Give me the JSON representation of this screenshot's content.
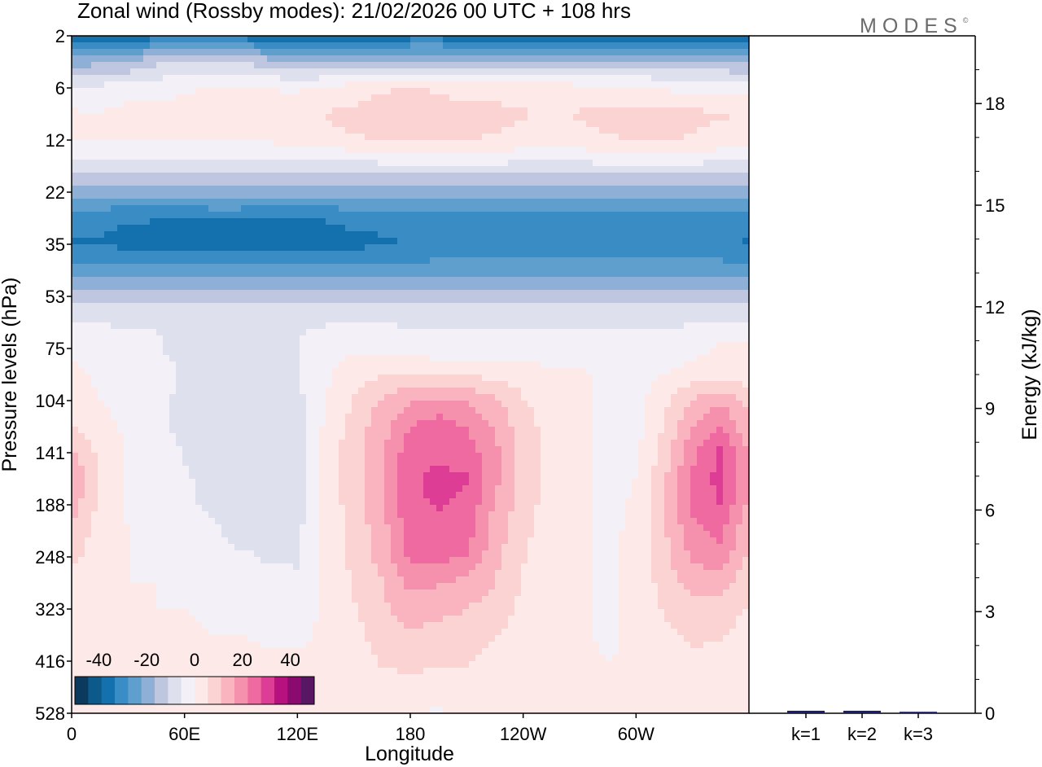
{
  "chart_data": [
    {
      "type": "heatmap",
      "title": "Zonal wind (Rossby modes):  21/02/2026  00 UTC  + 108 hrs",
      "xlabel": "Longitude",
      "ylabel": "Pressure levels (hPa)",
      "x_ticks": [
        "0",
        "60E",
        "120E",
        "180",
        "120W",
        "60W"
      ],
      "x_tick_lon": [
        0,
        60,
        120,
        180,
        240,
        300
      ],
      "xlim": [
        0,
        360
      ],
      "y_ticks": [
        "2",
        "6",
        "12",
        "22",
        "35",
        "53",
        "75",
        "104",
        "141",
        "188",
        "248",
        "323",
        "416",
        "528"
      ],
      "colorbar": {
        "tick_labels": [
          "-40",
          "-20",
          "0",
          "20",
          "40"
        ],
        "levels": [
          -40,
          -20,
          0,
          20,
          40
        ],
        "range": [
          -50,
          50
        ],
        "colors": [
          "#0b3a5e",
          "#0c5a8a",
          "#1471ad",
          "#3a8cc4",
          "#5e9fce",
          "#8eb0d6",
          "#bec6e0",
          "#dfe0ee",
          "#f3f0f7",
          "#fde9e7",
          "#fbd3d3",
          "#f9b4c0",
          "#f590ad",
          "#ef6aa0",
          "#dd3d94",
          "#b7107f",
          "#8a0a70",
          "#581763"
        ]
      },
      "rows": [
        {
          "level": "2",
          "values": [
            -38,
            -38,
            -38,
            -36,
            -36,
            -35,
            -36,
            -38,
            -38,
            -38,
            -38,
            -37,
            -36,
            -36,
            -37,
            -38,
            -38,
            -38,
            -38,
            -38,
            -38,
            -38,
            -38,
            -38,
            -38
          ]
        },
        {
          "level": "4",
          "values": [
            -20,
            -18,
            -16,
            -12,
            -10,
            -10,
            -12,
            -14,
            -15,
            -16,
            -16,
            -15,
            -14,
            -14,
            -14,
            -15,
            -16,
            -16,
            -16,
            -15,
            -14,
            -14,
            -15,
            -16,
            -17
          ]
        },
        {
          "level": "6",
          "values": [
            -6,
            -4,
            -3,
            -2,
            -1,
            1,
            1,
            0,
            -1,
            1,
            3,
            5,
            6,
            5,
            4,
            4,
            3,
            3,
            2,
            1,
            0,
            -1,
            -2,
            -2,
            -3
          ]
        },
        {
          "level": "9",
          "values": [
            1,
            0,
            2,
            2,
            2,
            3,
            2,
            2,
            4,
            6,
            7,
            8,
            8,
            7,
            7,
            7,
            6,
            5,
            6,
            7,
            8,
            8,
            7,
            6,
            5
          ]
        },
        {
          "level": "12",
          "values": [
            0,
            1,
            1,
            1,
            1,
            1,
            1,
            1,
            2,
            4,
            5,
            6,
            6,
            6,
            6,
            5,
            4,
            3,
            4,
            5,
            6,
            6,
            5,
            4,
            3
          ]
        },
        {
          "level": "17",
          "values": [
            -8,
            -8,
            -8,
            -8,
            -8,
            -8,
            -8,
            -8,
            -8,
            -8,
            -8,
            -7,
            -7,
            -7,
            -7,
            -7,
            -7,
            -7,
            -7,
            -7,
            -7,
            -7,
            -7,
            -7,
            -8
          ]
        },
        {
          "level": "22",
          "values": [
            -20,
            -20,
            -20,
            -20,
            -20,
            -19,
            -19,
            -20,
            -20,
            -20,
            -20,
            -19,
            -19,
            -19,
            -19,
            -19,
            -19,
            -19,
            -19,
            -19,
            -19,
            -19,
            -19,
            -19,
            -20
          ]
        },
        {
          "level": "28",
          "values": [
            -32,
            -32,
            -33,
            -33,
            -33,
            -33,
            -33,
            -33,
            -33,
            -33,
            -32,
            -32,
            -32,
            -31,
            -31,
            -31,
            -31,
            -31,
            -31,
            -31,
            -31,
            -31,
            -31,
            -31,
            -32
          ]
        },
        {
          "level": "35",
          "values": [
            -34,
            -34,
            -35,
            -36,
            -36,
            -36,
            -36,
            -36,
            -36,
            -36,
            -35,
            -34,
            -33,
            -32,
            -32,
            -32,
            -32,
            -32,
            -32,
            -31,
            -31,
            -31,
            -31,
            -32,
            -34
          ]
        },
        {
          "level": "44",
          "values": [
            -26,
            -25,
            -25,
            -25,
            -25,
            -25,
            -25,
            -25,
            -25,
            -25,
            -25,
            -25,
            -25,
            -25,
            -25,
            -25,
            -25,
            -25,
            -25,
            -25,
            -25,
            -25,
            -25,
            -25,
            -26
          ]
        },
        {
          "level": "53",
          "values": [
            -14,
            -13,
            -13,
            -13,
            -13,
            -13,
            -13,
            -13,
            -13,
            -13,
            -13,
            -13,
            -13,
            -12,
            -12,
            -12,
            -12,
            -12,
            -12,
            -12,
            -12,
            -12,
            -12,
            -12,
            -13
          ]
        },
        {
          "level": "64",
          "values": [
            -6,
            -6,
            -6,
            -6,
            -6,
            -6,
            -6,
            -6,
            -6,
            -6,
            -6,
            -6,
            -6,
            -6,
            -6,
            -6,
            -6,
            -6,
            -6,
            -6,
            -6,
            -6,
            -6,
            -6,
            -6
          ]
        },
        {
          "level": "75",
          "values": [
            -1,
            -2,
            -3,
            -5,
            -7,
            -8,
            -7,
            -7,
            -6,
            -2,
            -1,
            -2,
            -3,
            -4,
            -4,
            -4,
            -4,
            -4,
            -3,
            -3,
            -4,
            -4,
            -2,
            1,
            1
          ]
        },
        {
          "level": "90",
          "values": [
            1,
            -1,
            -2,
            -4,
            -6,
            -8,
            -8,
            -7,
            -6,
            -1,
            3,
            5,
            6,
            6,
            5,
            4,
            3,
            2,
            1,
            -2,
            -2,
            0,
            2,
            3,
            2
          ]
        },
        {
          "level": "104",
          "values": [
            3,
            0,
            -2,
            -4,
            -7,
            -9,
            -8,
            -8,
            -7,
            0,
            6,
            12,
            16,
            18,
            16,
            12,
            6,
            3,
            2,
            -3,
            -2,
            4,
            12,
            16,
            10
          ]
        },
        {
          "level": "121",
          "values": [
            6,
            2,
            -1,
            -4,
            -7,
            -9,
            -9,
            -10,
            -8,
            1,
            8,
            14,
            22,
            25,
            22,
            16,
            8,
            3,
            3,
            -4,
            -2,
            6,
            17,
            22,
            12
          ]
        },
        {
          "level": "141",
          "values": [
            12,
            4,
            -1,
            -3,
            -6,
            -8,
            -9,
            -10,
            -9,
            3,
            8,
            16,
            26,
            27,
            26,
            18,
            9,
            3,
            2,
            -3,
            -1,
            8,
            21,
            29,
            16
          ]
        },
        {
          "level": "163",
          "values": [
            16,
            6,
            -1,
            -3,
            -5,
            -7,
            -8,
            -9,
            -9,
            3,
            9,
            16,
            27,
            29,
            28,
            18,
            9,
            3,
            2,
            -3,
            0,
            10,
            23,
            30,
            17
          ]
        },
        {
          "level": "188",
          "values": [
            14,
            4,
            -1,
            -3,
            -5,
            -6,
            -8,
            -8,
            -8,
            2,
            8,
            15,
            27,
            28,
            27,
            16,
            8,
            3,
            2,
            -2,
            1,
            11,
            23,
            28,
            15
          ]
        },
        {
          "level": "215",
          "values": [
            10,
            3,
            0,
            -2,
            -4,
            -5,
            -7,
            -7,
            -7,
            2,
            8,
            14,
            26,
            27,
            25,
            14,
            7,
            3,
            1,
            -1,
            1,
            10,
            21,
            24,
            12
          ]
        },
        {
          "level": "248",
          "values": [
            7,
            2,
            0,
            -1,
            -2,
            -4,
            -5,
            -6,
            -6,
            2,
            7,
            13,
            24,
            24,
            22,
            13,
            6,
            2,
            1,
            -1,
            1,
            9,
            18,
            20,
            10
          ]
        },
        {
          "level": "284",
          "values": [
            4,
            1,
            0,
            0,
            -1,
            -2,
            -3,
            -4,
            -5,
            2,
            6,
            11,
            18,
            17,
            15,
            11,
            5,
            2,
            1,
            -1,
            1,
            8,
            13,
            13,
            7
          ]
        },
        {
          "level": "323",
          "values": [
            3,
            1,
            0,
            0,
            0,
            -1,
            -1,
            -2,
            -3,
            1,
            5,
            10,
            14,
            13,
            11,
            9,
            4,
            2,
            1,
            -1,
            1,
            6,
            10,
            9,
            5
          ]
        },
        {
          "level": "368",
          "values": [
            2,
            1,
            1,
            1,
            1,
            0,
            0,
            -1,
            -1,
            1,
            4,
            8,
            10,
            9,
            8,
            6,
            3,
            2,
            1,
            -1,
            1,
            4,
            7,
            6,
            3
          ]
        },
        {
          "level": "416",
          "values": [
            2,
            1,
            1,
            1,
            1,
            1,
            1,
            1,
            1,
            1,
            3,
            6,
            7,
            6,
            6,
            4,
            2,
            2,
            1,
            0,
            1,
            3,
            4,
            3,
            2
          ]
        },
        {
          "level": "470",
          "values": [
            1,
            1,
            1,
            1,
            1,
            1,
            1,
            1,
            1,
            1,
            3,
            4,
            4,
            4,
            4,
            3,
            2,
            1,
            1,
            1,
            1,
            2,
            3,
            2,
            1
          ]
        },
        {
          "level": "528",
          "values": [
            1,
            1,
            1,
            1,
            1,
            1,
            1,
            1,
            1,
            1,
            2,
            2,
            1,
            -1,
            1,
            2,
            2,
            1,
            1,
            1,
            1,
            1,
            1,
            1,
            1
          ]
        }
      ]
    },
    {
      "type": "bar",
      "ylabel": "Energy (kJ/kg)",
      "categories": [
        "k=1",
        "k=2",
        "k=3"
      ],
      "values": [
        0.05,
        0.05,
        0.02
      ],
      "ylim": [
        0,
        20
      ],
      "y_ticks": [
        "0",
        "3",
        "6",
        "9",
        "12",
        "15",
        "18"
      ],
      "y_tick_values": [
        0,
        3,
        6,
        9,
        12,
        15,
        18
      ],
      "bar_color": "#1a1a6e"
    }
  ],
  "logo": {
    "text": "MODES",
    "mark": "©"
  }
}
